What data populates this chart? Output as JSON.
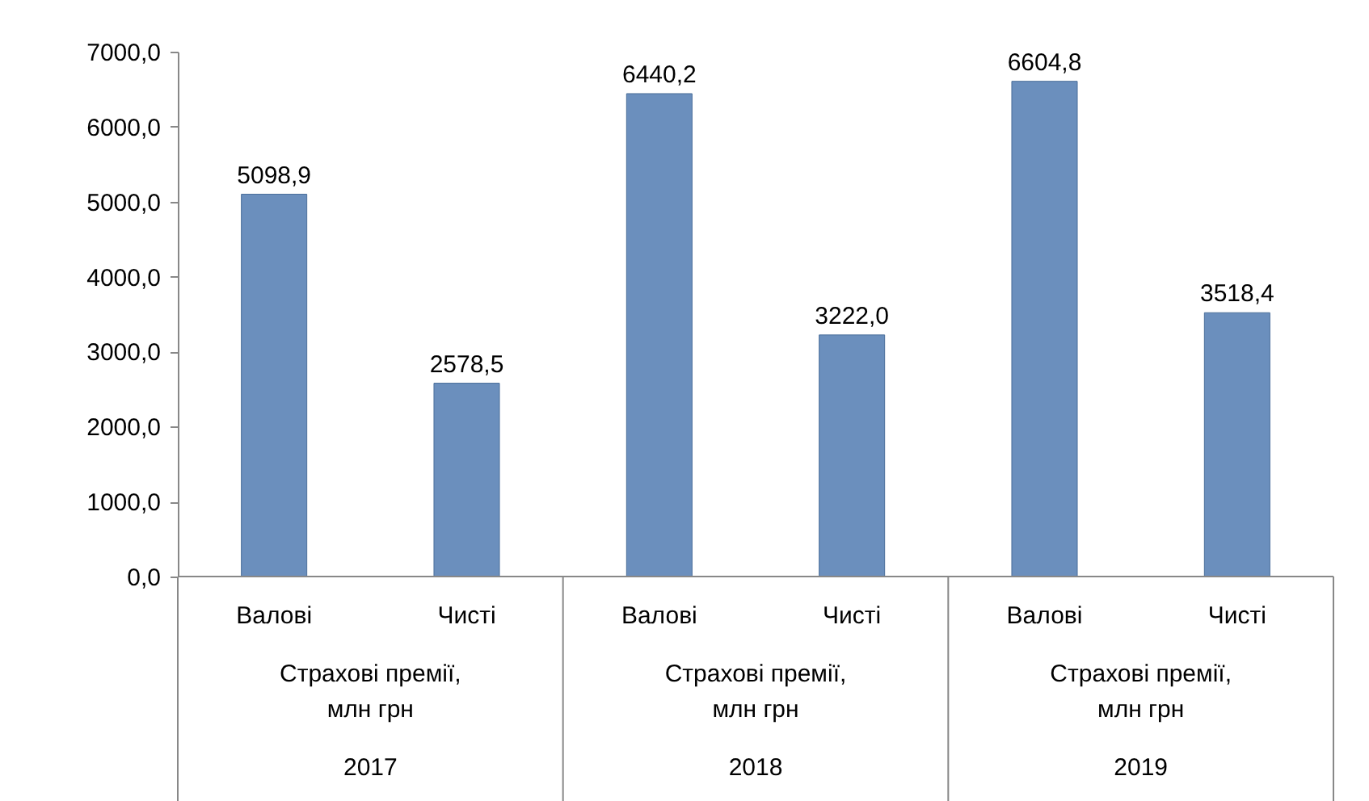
{
  "chart_data": {
    "type": "bar",
    "categories": [
      "Валові",
      "Чисті",
      "Валові",
      "Чисті",
      "Валові",
      "Чисті"
    ],
    "values": [
      5098.9,
      2578.5,
      6440.2,
      3222.0,
      6604.8,
      3518.4
    ],
    "value_labels": [
      "5098,9",
      "2578,5",
      "6440,2",
      "3222,0",
      "6604,8",
      "3518,4"
    ],
    "color": "#6b8fbd",
    "ylim": [
      0,
      7000
    ],
    "yticks": [
      {
        "value": 0,
        "label": "0,0"
      },
      {
        "value": 1000,
        "label": "1000,0"
      },
      {
        "value": 2000,
        "label": "2000,0"
      },
      {
        "value": 3000,
        "label": "3000,0"
      },
      {
        "value": 4000,
        "label": "4000,0"
      },
      {
        "value": 5000,
        "label": "5000,0"
      },
      {
        "value": 6000,
        "label": "6000,0"
      },
      {
        "value": 7000,
        "label": "7000,0"
      }
    ],
    "grid": false,
    "annotations": [
      "Страхові премії, млн грн",
      "Страхові премії, млн грн",
      "Страхові премії, млн грн",
      "2017",
      "2018",
      "2019"
    ]
  }
}
